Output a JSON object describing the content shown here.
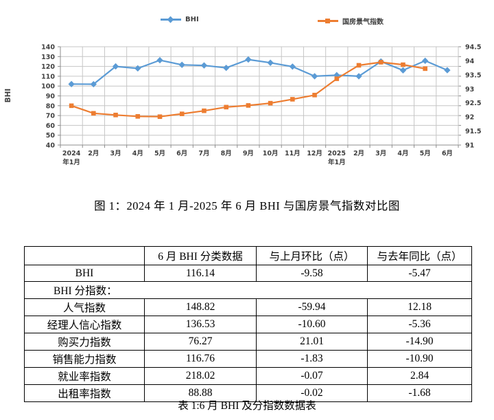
{
  "figure": {
    "caption": "图 1：2024 年 1 月-2025 年 6 月 BHI 与国房景气指数对比图"
  },
  "chart_data": {
    "type": "line",
    "categories": [
      "2024年1月",
      "2月",
      "3月",
      "4月",
      "5月",
      "6月",
      "7月",
      "8月",
      "9月",
      "10月",
      "11月",
      "12月",
      "2025年1月",
      "2月",
      "3月",
      "4月",
      "5月",
      "6月"
    ],
    "series": [
      {
        "name": "BHI",
        "axis": "left",
        "color": "#5B9BD5",
        "marker": "diamond",
        "values": [
          102.0,
          101.9,
          120.0,
          118.0,
          126.3,
          121.6,
          121.0,
          118.5,
          127.0,
          123.7,
          119.8,
          110.0,
          111.1,
          110.0,
          125.0,
          116.0,
          125.72,
          116.14
        ]
      },
      {
        "name": "国房景气指数",
        "axis": "right",
        "color": "#ED7D31",
        "marker": "square",
        "values": [
          92.4,
          92.13,
          92.07,
          92.02,
          92.01,
          92.11,
          92.22,
          92.35,
          92.41,
          92.49,
          92.63,
          92.78,
          93.36,
          93.84,
          93.95,
          93.86,
          93.72,
          null
        ]
      }
    ],
    "left_axis": {
      "title": "BHI",
      "min": 40,
      "max": 140,
      "step": 10
    },
    "right_axis": {
      "min": 91,
      "max": 94.5,
      "step": 0.5
    },
    "grid": true,
    "legend_position": "top",
    "grid_color": "#C6C6C6",
    "axis_color": "#8C8C8C",
    "tick_color": "#404040"
  },
  "table": {
    "caption": "表 1:6 月 BHI 及分指数数据表",
    "headers": [
      "",
      "6 月 BHI 分类数据",
      "与上月环比（点）",
      "与去年同比（点）"
    ],
    "rows": [
      {
        "label": "BHI",
        "values": [
          "116.14",
          "-9.58",
          "-5.47"
        ]
      },
      {
        "label": "BHI 分指数：",
        "span": true
      },
      {
        "label": "人气指数",
        "values": [
          "148.82",
          "-59.94",
          "12.18"
        ]
      },
      {
        "label": "经理人信心指数",
        "values": [
          "136.53",
          "-10.60",
          "-5.36"
        ]
      },
      {
        "label": "购买力指数",
        "values": [
          "76.27",
          "21.01",
          "-14.90"
        ]
      },
      {
        "label": "销售能力指数",
        "values": [
          "116.76",
          "-1.83",
          "-10.90"
        ]
      },
      {
        "label": "就业率指数",
        "values": [
          "218.02",
          "-0.07",
          "2.84"
        ]
      },
      {
        "label": "出租率指数",
        "values": [
          "88.88",
          "-0.02",
          "-1.68"
        ]
      }
    ]
  }
}
